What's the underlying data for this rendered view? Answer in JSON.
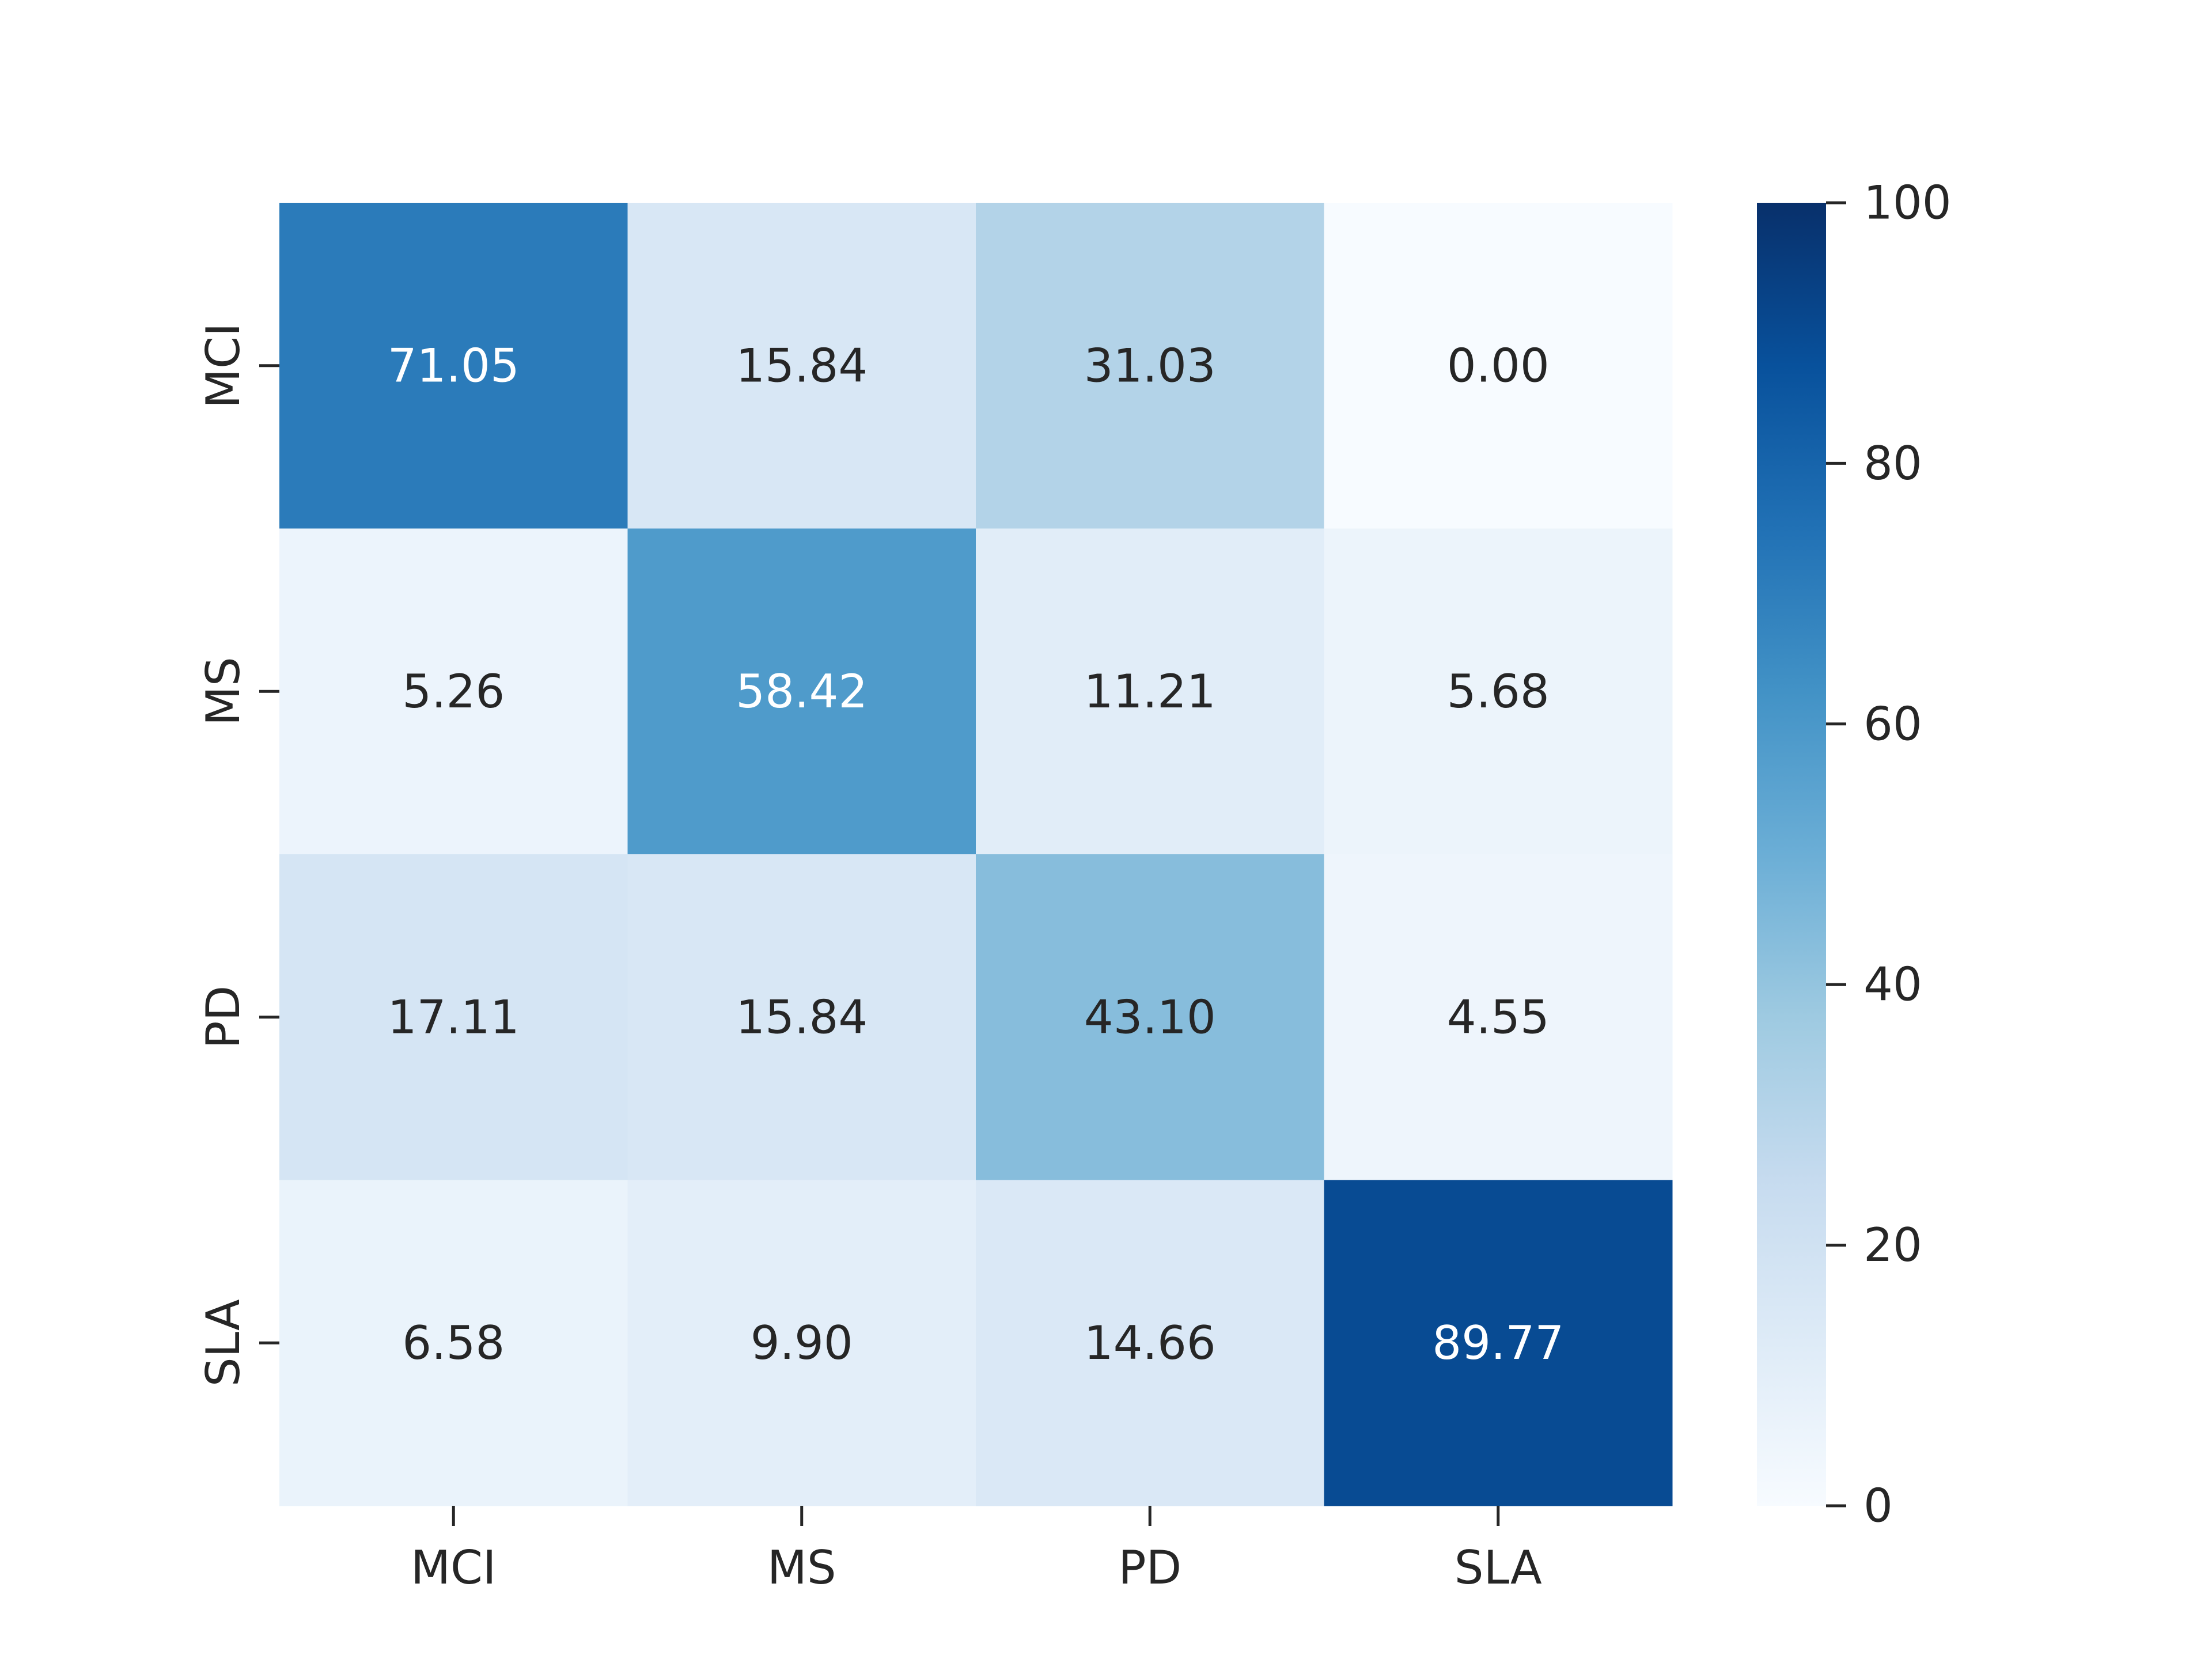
{
  "chart_data": {
    "type": "heatmap",
    "colormap": "Blues",
    "x_categories": [
      "MCI",
      "MS",
      "PD",
      "SLA"
    ],
    "y_categories": [
      "MCI",
      "MS",
      "PD",
      "SLA"
    ],
    "values": [
      [
        71.05,
        15.84,
        31.03,
        0.0
      ],
      [
        5.26,
        58.42,
        11.21,
        5.68
      ],
      [
        17.11,
        15.84,
        43.1,
        4.55
      ],
      [
        6.58,
        9.9,
        14.66,
        89.77
      ]
    ],
    "value_labels": [
      [
        "71.05",
        "15.84",
        "31.03",
        "0.00"
      ],
      [
        "5.26",
        "58.42",
        "11.21",
        "5.68"
      ],
      [
        "17.11",
        "15.84",
        "43.10",
        "4.55"
      ],
      [
        "6.58",
        "9.90",
        "14.66",
        "89.77"
      ]
    ],
    "colorbar": {
      "range": [
        0,
        100
      ],
      "ticks": [
        0,
        20,
        40,
        60,
        80,
        100
      ],
      "tick_labels": [
        "0",
        "20",
        "40",
        "60",
        "80",
        "100"
      ]
    },
    "title": "",
    "xlabel": "",
    "ylabel": ""
  }
}
